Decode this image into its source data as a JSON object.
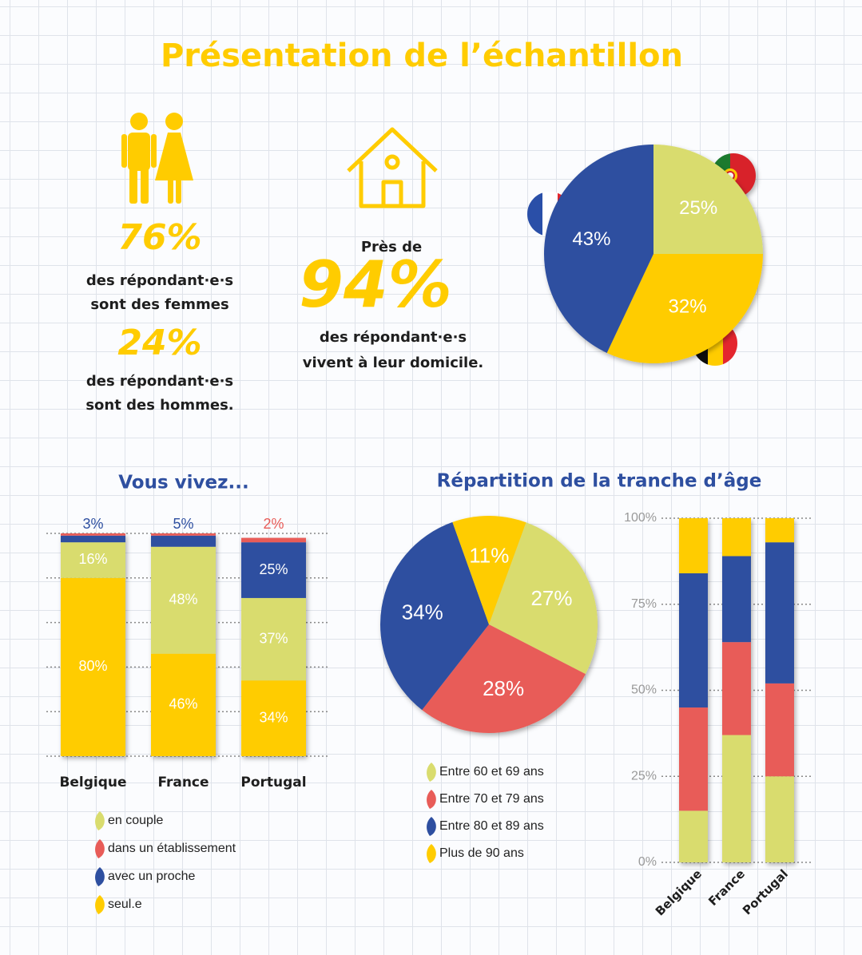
{
  "title": "Présentation de l’échantillon",
  "stats": [
    {
      "value": "76%",
      "lines": [
        "des répondant·e·s",
        "sont des femmes"
      ]
    },
    {
      "value": "24%",
      "lines": [
        "des répondant·e·s",
        "sont des hommes."
      ]
    },
    {
      "prefix": "Près de",
      "value": "94%",
      "lines": [
        "des répondant·e·s",
        "vivent à leur domicile."
      ]
    }
  ],
  "chart_data": [
    {
      "type": "pie",
      "values": [
        25,
        32,
        43
      ],
      "value_labels": [
        "25%",
        "32%",
        "43%"
      ],
      "colors": [
        "#d9dc6e",
        "#ffcc00",
        "#2e4fa0"
      ]
    },
    {
      "type": "stacked_bar",
      "title": "Vous vivez...",
      "categories": [
        "Belgique",
        "France",
        "Portugal"
      ],
      "ylim": [
        0,
        100
      ],
      "grid": true,
      "series": [
        {
          "name": "seul.e",
          "color": "#ffcc00",
          "values": [
            80,
            46,
            34
          ],
          "value_labels": [
            "80%",
            "46%",
            "34%"
          ]
        },
        {
          "name": "en couple",
          "color": "#d9dc6e",
          "values": [
            16,
            48,
            37
          ],
          "value_labels": [
            "16%",
            "48%",
            "37%"
          ]
        },
        {
          "name": "avec un proche",
          "color": "#2e4fa0",
          "values": [
            3,
            5,
            25
          ],
          "value_labels": [
            "3%",
            "5%",
            "25%"
          ]
        },
        {
          "name": "dans un établissement",
          "color": "#e85c58",
          "values": [
            1,
            1,
            2
          ],
          "value_labels": [
            null,
            null,
            "2%"
          ]
        }
      ],
      "legend_order": [
        1,
        3,
        2,
        0
      ]
    },
    {
      "type": "pie",
      "title": "Répartition de la tranche d’âge",
      "categories": [
        "Entre 60 et 69 ans",
        "Entre 70 et 79 ans",
        "Entre 80 et 89 ans",
        "Plus de 90 ans"
      ],
      "values": [
        27,
        28,
        34,
        11
      ],
      "value_labels": [
        "27%",
        "28%",
        "34%",
        "11%"
      ],
      "colors": [
        "#d9dc6e",
        "#e85c58",
        "#2e4fa0",
        "#ffcc00"
      ]
    },
    {
      "type": "stacked_bar",
      "categories": [
        "Belgique",
        "France",
        "Portugal"
      ],
      "ylim": [
        0,
        100
      ],
      "yticks": [
        {
          "value": 0,
          "label": "0%"
        },
        {
          "value": 25,
          "label": "25%"
        },
        {
          "value": 50,
          "label": "50%"
        },
        {
          "value": 75,
          "label": "75%"
        },
        {
          "value": 100,
          "label": "100%"
        }
      ],
      "series": [
        {
          "color": "#d9dc6e",
          "values": [
            15,
            37,
            25
          ]
        },
        {
          "color": "#e85c58",
          "values": [
            30,
            27,
            27
          ]
        },
        {
          "color": "#2e4fa0",
          "values": [
            39,
            25,
            41
          ]
        },
        {
          "color": "#ffcc00",
          "values": [
            16,
            11,
            7
          ]
        }
      ]
    }
  ]
}
